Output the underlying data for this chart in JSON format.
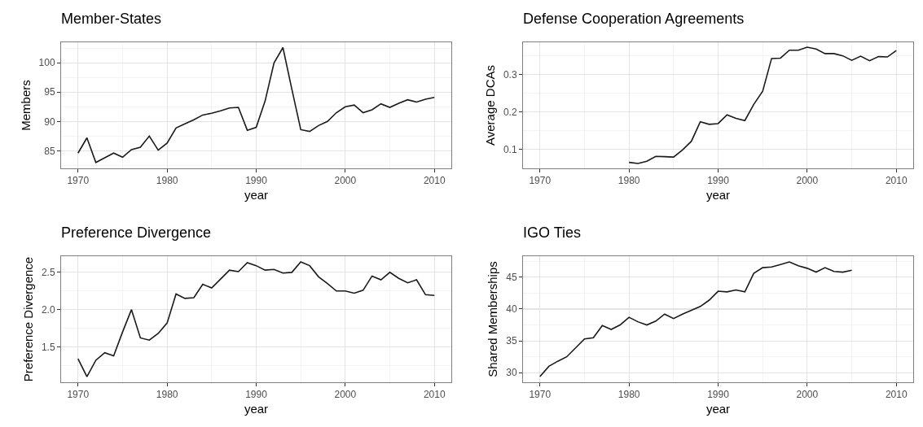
{
  "chart_data": [
    {
      "type": "line",
      "title": "Member-States",
      "xlabel": "year",
      "ylabel": "Members",
      "grid": true,
      "xlim": [
        1968.1,
        2011.9
      ],
      "xticks": [
        1970,
        1980,
        1990,
        2000,
        2010
      ],
      "ylim": [
        82.0,
        103.5
      ],
      "yticks": [
        85,
        90,
        95,
        100
      ],
      "x": [
        1970,
        1971,
        1972,
        1973,
        1974,
        1975,
        1976,
        1977,
        1978,
        1979,
        1980,
        1981,
        1982,
        1983,
        1984,
        1985,
        1986,
        1987,
        1988,
        1989,
        1990,
        1991,
        1992,
        1993,
        1994,
        1995,
        1996,
        1997,
        1998,
        1999,
        2000,
        2001,
        2002,
        2003,
        2004,
        2005,
        2006,
        2007,
        2008,
        2009,
        2010
      ],
      "series": [
        {
          "color": "#1a1a1a",
          "values": [
            84.6,
            87.2,
            83.0,
            83.8,
            84.6,
            83.9,
            85.2,
            85.6,
            87.5,
            85.1,
            86.3,
            88.9,
            89.6,
            90.3,
            91.1,
            91.4,
            91.8,
            92.3,
            92.4,
            88.5,
            89.0,
            93.5,
            100.0,
            102.6,
            95.5,
            88.6,
            88.3,
            89.3,
            90.0,
            91.5,
            92.5,
            92.8,
            91.5,
            92.0,
            93.0,
            92.4,
            93.1,
            93.7,
            93.3,
            93.8,
            94.1
          ]
        }
      ]
    },
    {
      "type": "line",
      "title": "Defense Cooperation Agreements",
      "xlabel": "year",
      "ylabel": "Average DCAs",
      "grid": true,
      "xlim": [
        1968.1,
        2011.9
      ],
      "xticks": [
        1970,
        1980,
        1990,
        2000,
        2010
      ],
      "ylim": [
        0.05,
        0.385
      ],
      "yticks": [
        0.1,
        0.2,
        0.3
      ],
      "x": [
        1980,
        1981,
        1982,
        1983,
        1984,
        1985,
        1986,
        1987,
        1988,
        1989,
        1990,
        1991,
        1992,
        1993,
        1994,
        1995,
        1996,
        1997,
        1998,
        1999,
        2000,
        2001,
        2002,
        2003,
        2004,
        2005,
        2006,
        2007,
        2008,
        2009,
        2010
      ],
      "series": [
        {
          "color": "#1a1a1a",
          "values": [
            0.066,
            0.063,
            0.069,
            0.082,
            0.081,
            0.08,
            0.099,
            0.122,
            0.174,
            0.167,
            0.169,
            0.192,
            0.183,
            0.177,
            0.22,
            0.255,
            0.342,
            0.343,
            0.364,
            0.364,
            0.372,
            0.367,
            0.355,
            0.355,
            0.349,
            0.337,
            0.348,
            0.336,
            0.347,
            0.346,
            0.363
          ]
        }
      ]
    },
    {
      "type": "line",
      "title": "Preference Divergence",
      "xlabel": "year",
      "ylabel": "Preference Divergence",
      "grid": true,
      "xlim": [
        1968.1,
        2011.9
      ],
      "xticks": [
        1970,
        1980,
        1990,
        2000,
        2010
      ],
      "ylim": [
        1.024,
        2.717
      ],
      "yticks": [
        1.5,
        {
          "value": 2,
          "label": "2.0"
        },
        2.5
      ],
      "x": [
        1970,
        1971,
        1972,
        1973,
        1974,
        1975,
        1976,
        1977,
        1978,
        1979,
        1980,
        1981,
        1982,
        1983,
        1984,
        1985,
        1986,
        1987,
        1988,
        1989,
        1990,
        1991,
        1992,
        1993,
        1994,
        1995,
        1996,
        1997,
        1998,
        1999,
        2000,
        2001,
        2002,
        2003,
        2004,
        2005,
        2006,
        2007,
        2008,
        2009,
        2010
      ],
      "series": [
        {
          "color": "#1a1a1a",
          "values": [
            1.34,
            1.1,
            1.32,
            1.42,
            1.38,
            1.7,
            2.0,
            1.62,
            1.59,
            1.68,
            1.82,
            2.21,
            2.15,
            2.16,
            2.34,
            2.29,
            2.41,
            2.53,
            2.51,
            2.63,
            2.59,
            2.53,
            2.54,
            2.49,
            2.5,
            2.64,
            2.59,
            2.44,
            2.35,
            2.25,
            2.25,
            2.22,
            2.26,
            2.45,
            2.4,
            2.5,
            2.42,
            2.36,
            2.4,
            2.2,
            2.19
          ]
        }
      ]
    },
    {
      "type": "line",
      "title": "IGO Ties",
      "xlabel": "year",
      "ylabel": "Shared Memberships",
      "grid": true,
      "xlim": [
        1968.1,
        2011.9
      ],
      "xticks": [
        1970,
        1980,
        1990,
        2000,
        2010
      ],
      "ylim": [
        28.5,
        48.3
      ],
      "yticks": [
        30,
        35,
        40,
        45
      ],
      "x": [
        1970,
        1971,
        1972,
        1973,
        1974,
        1975,
        1976,
        1977,
        1978,
        1979,
        1980,
        1981,
        1982,
        1983,
        1984,
        1985,
        1986,
        1987,
        1988,
        1989,
        1990,
        1991,
        1992,
        1993,
        1994,
        1995,
        1996,
        1997,
        1998,
        1999,
        2000,
        2001,
        2002,
        2003,
        2004,
        2005
      ],
      "series": [
        {
          "color": "#1a1a1a",
          "values": [
            29.4,
            31.0,
            31.8,
            32.5,
            33.9,
            35.3,
            35.5,
            37.4,
            36.8,
            37.5,
            38.7,
            38.0,
            37.5,
            38.1,
            39.2,
            38.5,
            39.2,
            39.8,
            40.4,
            41.4,
            42.8,
            42.7,
            43.0,
            42.7,
            45.6,
            46.5,
            46.6,
            47.0,
            47.4,
            46.8,
            46.4,
            45.8,
            46.5,
            45.9,
            45.8,
            46.1
          ]
        }
      ]
    }
  ]
}
